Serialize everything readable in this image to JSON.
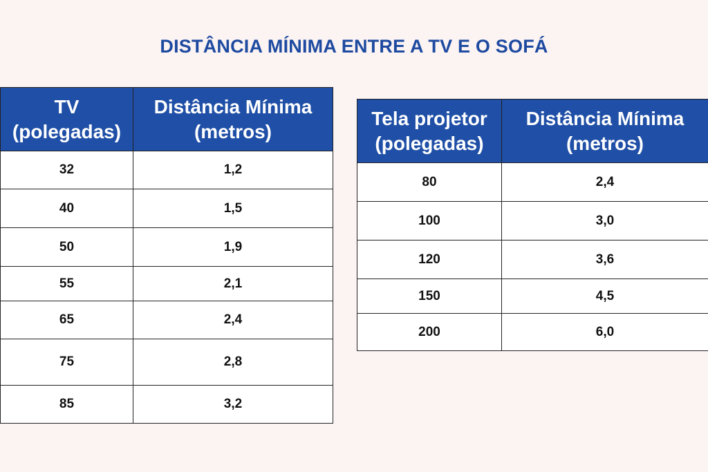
{
  "title": "DISTÂNCIA MÍNIMA ENTRE A TV E O SOFÁ",
  "colors": {
    "background": "#fcf3f3",
    "title": "#1d4aa0",
    "header_bg": "#1f4fa6",
    "header_text": "#ffffff"
  },
  "tv_table": {
    "headers": [
      {
        "line1": "TV",
        "line2": "(polegadas)"
      },
      {
        "line1": "Distância Mínima",
        "line2": "(metros)"
      }
    ],
    "rows": [
      {
        "size": "32",
        "distance": "1,2"
      },
      {
        "size": "40",
        "distance": "1,5"
      },
      {
        "size": "50",
        "distance": "1,9"
      },
      {
        "size": "55",
        "distance": "2,1"
      },
      {
        "size": "65",
        "distance": "2,4"
      },
      {
        "size": "75",
        "distance": "2,8"
      },
      {
        "size": "85",
        "distance": "3,2"
      }
    ]
  },
  "projector_table": {
    "headers": [
      {
        "line1": "Tela projetor",
        "line2": "(polegadas)"
      },
      {
        "line1": "Distância Mínima",
        "line2": "(metros)"
      }
    ],
    "rows": [
      {
        "size": "80",
        "distance": "2,4"
      },
      {
        "size": "100",
        "distance": "3,0"
      },
      {
        "size": "120",
        "distance": "3,6"
      },
      {
        "size": "150",
        "distance": "4,5"
      },
      {
        "size": "200",
        "distance": "6,0"
      }
    ]
  }
}
